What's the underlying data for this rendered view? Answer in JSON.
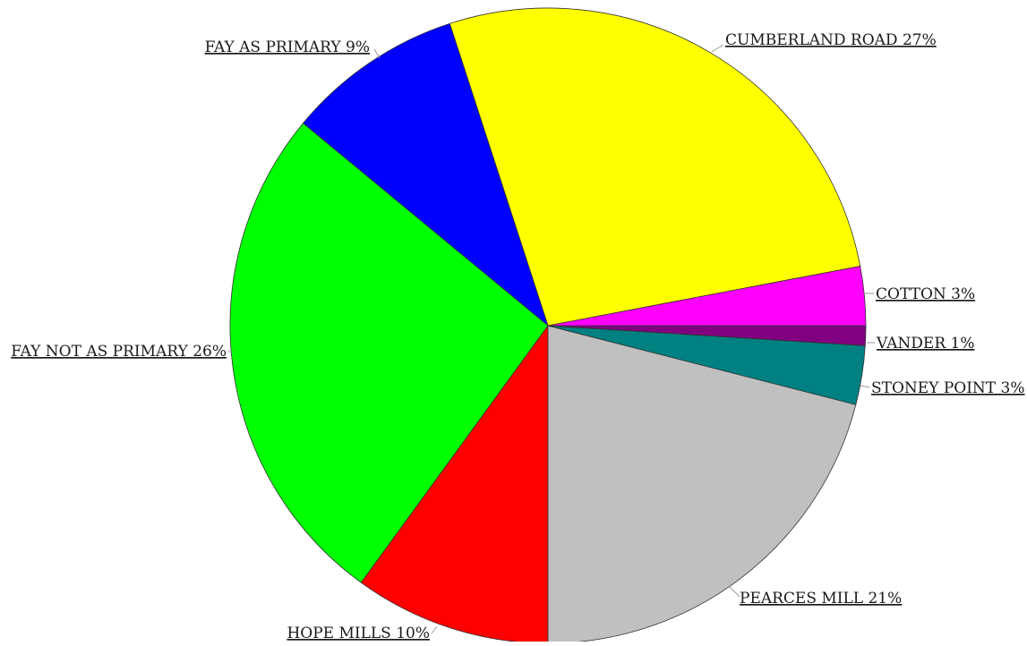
{
  "chart_data": {
    "type": "pie",
    "title": "",
    "slices": [
      {
        "name": "CUMBERLAND ROAD",
        "value": 27,
        "label": "CUMBERLAND ROAD 27%",
        "color": "#ffff00"
      },
      {
        "name": "FAY AS PRIMARY",
        "value": 9,
        "label": "FAY AS PRIMARY 9%",
        "color": "#0000ff"
      },
      {
        "name": "FAY NOT AS PRIMARY",
        "value": 26,
        "label": "FAY NOT AS PRIMARY 26%",
        "color": "#00ff00"
      },
      {
        "name": "HOPE MILLS",
        "value": 10,
        "label": "HOPE MILLS 10%",
        "color": "#ff0000"
      },
      {
        "name": "PEARCES MILL",
        "value": 21,
        "label": "PEARCES MILL 21%",
        "color": "#c0c0c0"
      },
      {
        "name": "STONEY POINT",
        "value": 3,
        "label": "STONEY POINT 3%",
        "color": "#008080"
      },
      {
        "name": "VANDER",
        "value": 1,
        "label": "VANDER 1%",
        "color": "#800080"
      },
      {
        "name": "COTTON",
        "value": 3,
        "label": "COTTON 3%",
        "color": "#ff00ff"
      }
    ],
    "start_angle_deg": 0,
    "direction": "counterclockwise",
    "legend": "none",
    "labels": "outside with leader lines"
  }
}
